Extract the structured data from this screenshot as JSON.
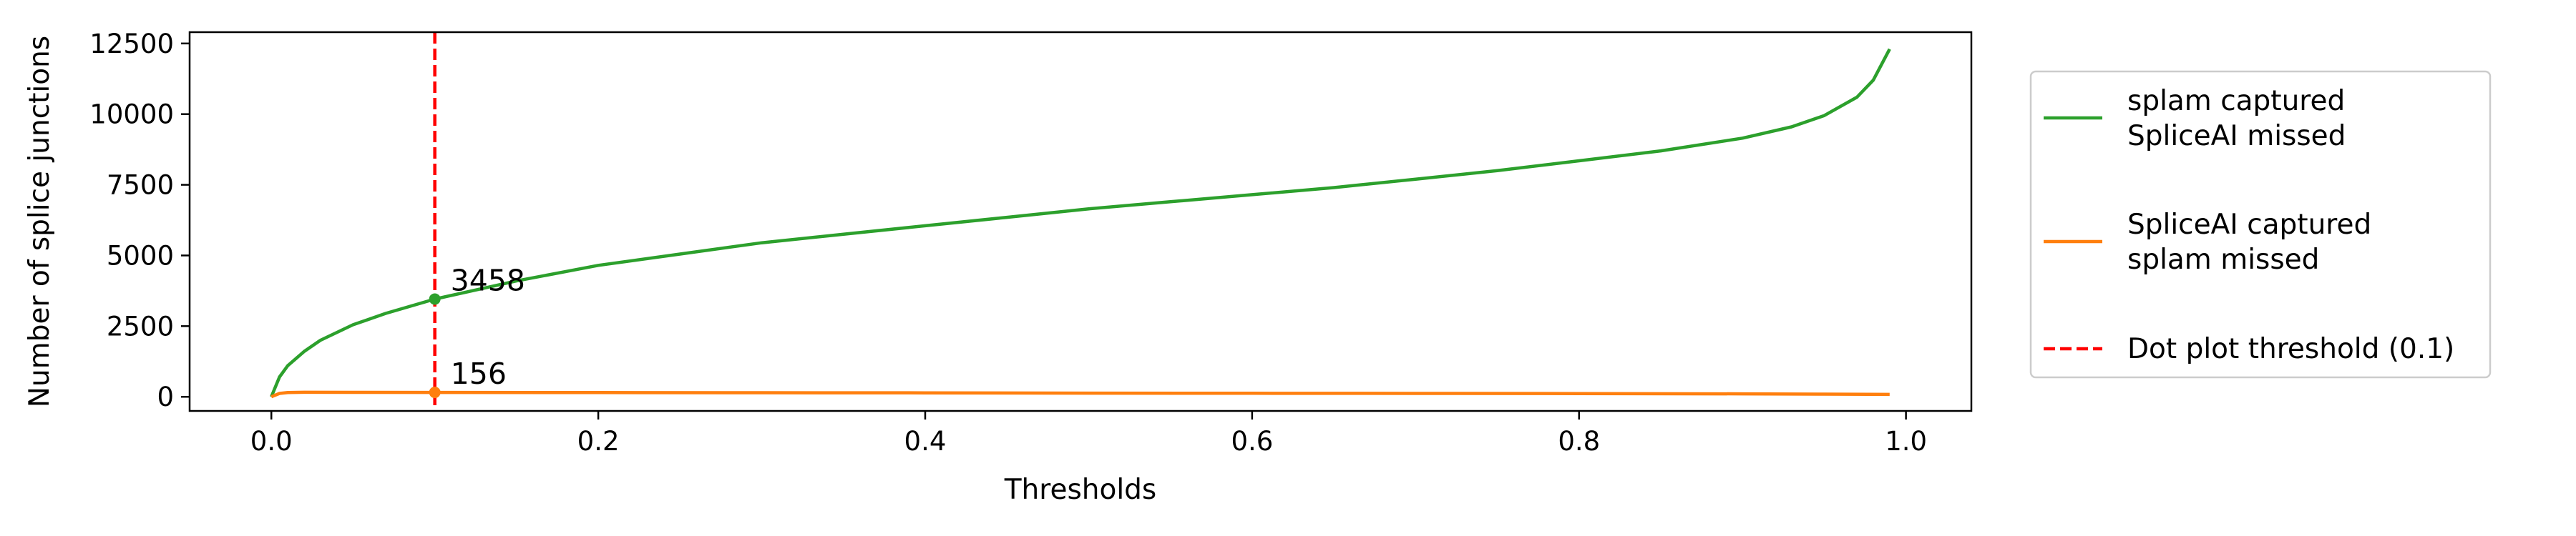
{
  "chart_data": {
    "type": "line",
    "title": "",
    "xlabel": "Thresholds",
    "ylabel": "Number of splice junctions",
    "xlim": [
      -0.05,
      1.04
    ],
    "ylim": [
      -500,
      12900
    ],
    "xticks": [
      0.0,
      0.2,
      0.4,
      0.6,
      0.8,
      1.0
    ],
    "xtick_labels": [
      "0.0",
      "0.2",
      "0.4",
      "0.6",
      "0.8",
      "1.0"
    ],
    "yticks": [
      0,
      2500,
      5000,
      7500,
      10000,
      12500
    ],
    "ytick_labels": [
      "0",
      "2500",
      "5000",
      "7500",
      "10000",
      "12500"
    ],
    "grid": false,
    "legend_position": "outside-right",
    "series": [
      {
        "name": "splam captured\nSpliceAI missed",
        "color": "#2ca02c",
        "x": [
          0.0,
          0.005,
          0.01,
          0.02,
          0.03,
          0.05,
          0.07,
          0.1,
          0.15,
          0.2,
          0.25,
          0.3,
          0.35,
          0.4,
          0.45,
          0.5,
          0.55,
          0.6,
          0.65,
          0.7,
          0.75,
          0.8,
          0.85,
          0.9,
          0.93,
          0.95,
          0.97,
          0.98,
          0.99
        ],
        "y": [
          0,
          700,
          1100,
          1600,
          2000,
          2550,
          2950,
          3458,
          4100,
          4650,
          5050,
          5450,
          5750,
          6050,
          6350,
          6650,
          6900,
          7150,
          7400,
          7700,
          8000,
          8350,
          8700,
          9150,
          9550,
          9950,
          10600,
          11200,
          12300
        ]
      },
      {
        "name": "SpliceAI captured\nsplam missed",
        "color": "#ff7f0e",
        "x": [
          0.0,
          0.005,
          0.01,
          0.02,
          0.05,
          0.1,
          0.2,
          0.3,
          0.4,
          0.5,
          0.6,
          0.7,
          0.8,
          0.9,
          0.95,
          0.99
        ],
        "y": [
          0,
          120,
          150,
          160,
          158,
          156,
          150,
          145,
          140,
          130,
          125,
          120,
          115,
          105,
          95,
          85
        ]
      }
    ],
    "threshold_line": {
      "name": "Dot plot threshold (0.1)",
      "x": 0.1,
      "color": "#ff0000"
    },
    "annotations": [
      {
        "x": 0.1,
        "y": 3458,
        "text": "3458",
        "color": "#2ca02c"
      },
      {
        "x": 0.1,
        "y": 156,
        "text": "156",
        "color": "#ff7f0e"
      }
    ]
  }
}
